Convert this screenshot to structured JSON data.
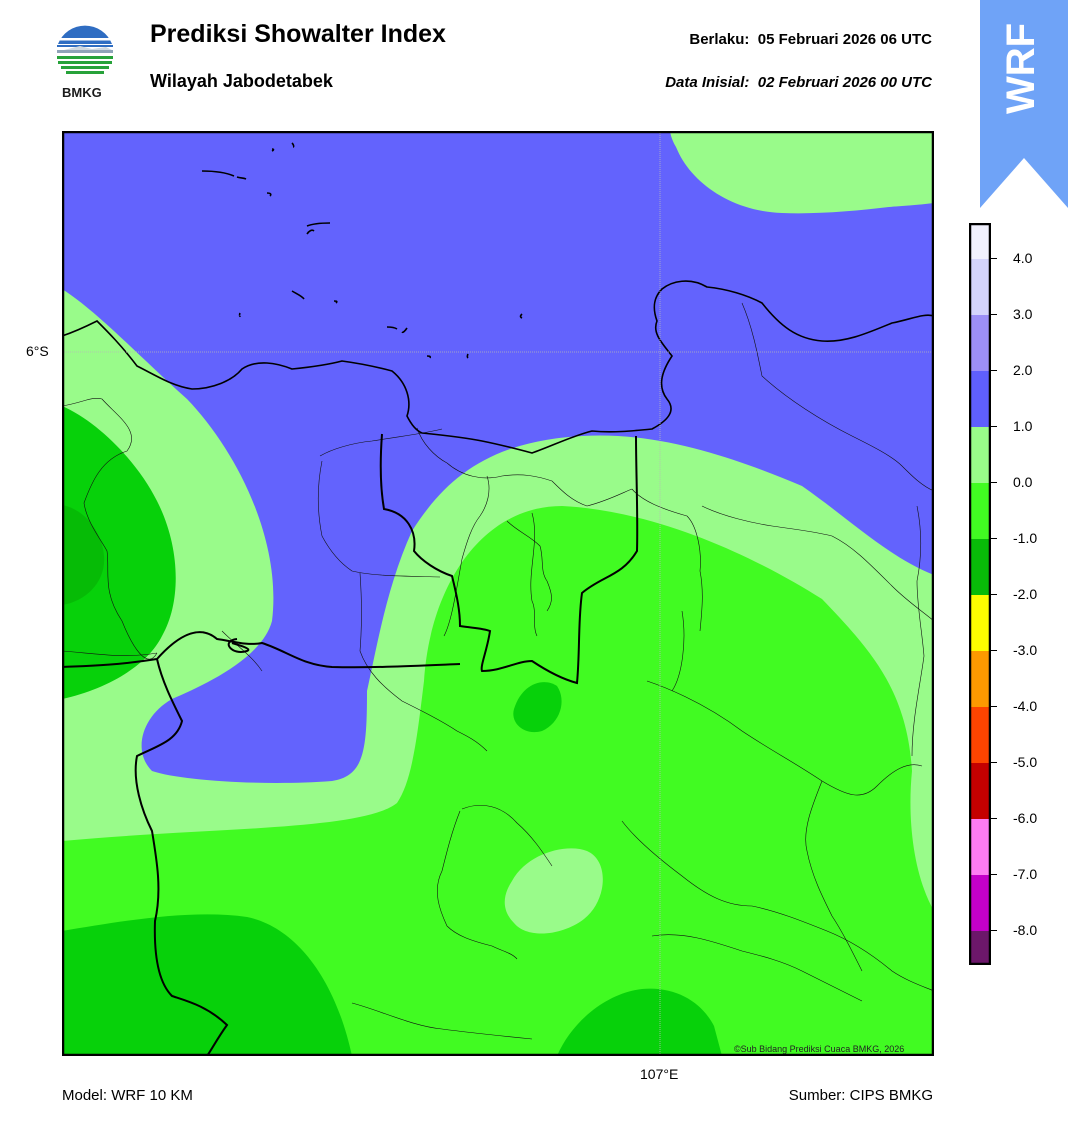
{
  "header": {
    "title": "Prediksi Showalter Index",
    "subtitle": "Wilayah Jabodetabek",
    "valid_label": "Berlaku:",
    "valid_value": "05 Februari 2026 06 UTC",
    "init_label": "Data Inisial:",
    "init_value": "02 Februari 2026 00 UTC"
  },
  "logo": {
    "text": "BMKG",
    "icon": "bmkg-logo-icon"
  },
  "badge": {
    "text": "WRF",
    "color": "#6fa3f7"
  },
  "map": {
    "lat_label": "6°S",
    "lon_label": "107°E",
    "copyright": "©Sub Bidang Prediksi Cuaca BMKG, 2026",
    "colors": {
      "band_1_to_2": "#6363fd",
      "band_0_to_1": "#99fb8a",
      "band_m1_to_0": "#41fb22",
      "band_m2_to_m1": "#07d10a"
    }
  },
  "colorbar": {
    "ticks": [
      "4.0",
      "3.0",
      "2.0",
      "1.0",
      "0.0",
      "-1.0",
      "-2.0",
      "-3.0",
      "-4.0",
      "-5.0",
      "-6.0",
      "-7.0",
      "-8.0"
    ],
    "colors": [
      "#f1f1fe",
      "#d4d4fc",
      "#9c8ff6",
      "#5f5ffd",
      "#99fb8a",
      "#41fb22",
      "#08bb08",
      "#fdfd00",
      "#fd9900",
      "#fd4400",
      "#c40000",
      "#fd7cf3",
      "#c300c9",
      "#6c176a"
    ]
  },
  "footer": {
    "model": "Model: WRF 10 KM",
    "source": "Sumber: CIPS BMKG"
  }
}
